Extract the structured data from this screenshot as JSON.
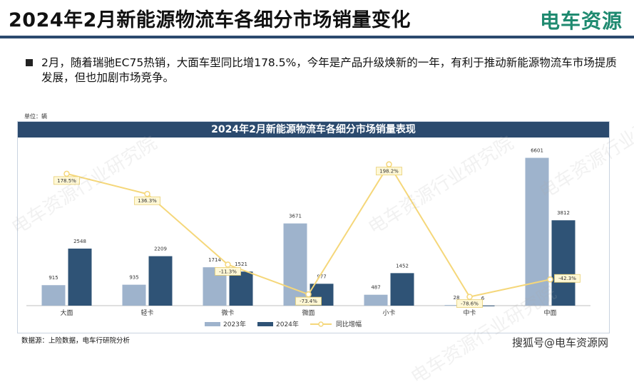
{
  "header": {
    "title": "2024年2月新能源物流车各细分市场销量变化",
    "logo": "电车资源"
  },
  "summary": {
    "text": "2月，随着瑞驰EC75热销，大面车型同比增178.5%，今年是产品升级焕新的一年，有利于推动新能源物流车市场提质发展，但也加剧市场竞争。"
  },
  "unit_label": "单位：辆",
  "source": "数据源：上险数据，电车行研院分析",
  "footer": "搜狐号@电车资源网",
  "watermark": "电车资源行业研究院",
  "colors": {
    "bar2023": "#9eb3cc",
    "bar2024": "#2f5376",
    "line": "#f5d77a",
    "header": "#2b4a6e"
  },
  "chart_data": {
    "type": "bar",
    "title": "2024年2月新能源物流车各细分市场销量表现",
    "categories": [
      "大面",
      "轻卡",
      "微卡",
      "微面",
      "小卡",
      "中卡",
      "中面"
    ],
    "series": [
      {
        "name": "2023年",
        "type": "bar",
        "values": [
          915,
          935,
          1714,
          3671,
          487,
          28,
          6601
        ]
      },
      {
        "name": "2024年",
        "type": "bar",
        "values": [
          2548,
          2209,
          1521,
          977,
          1452,
          6,
          3812
        ]
      },
      {
        "name": "同比增幅",
        "type": "line",
        "values": [
          178.5,
          136.3,
          -11.3,
          -73.4,
          198.2,
          -78.6,
          -42.3
        ],
        "labels": [
          "178.5%",
          "136.3%",
          "-11.3%",
          "-73.4%",
          "198.2%",
          "-78.6%",
          "-42.3%"
        ]
      }
    ],
    "ylim": [
      0,
      7000
    ],
    "y2lim": [
      -100,
      220
    ],
    "grid": false,
    "legend": "bottom"
  }
}
